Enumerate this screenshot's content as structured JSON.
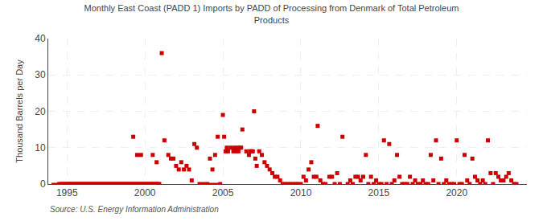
{
  "chart_data": {
    "type": "scatter",
    "title": "Monthly East Coast (PADD 1) Imports by PADD of Processing from Denmark of Total Petroleum\nProducts",
    "ylabel": "Thousand Barrels per Day",
    "annotations": [
      "Source: U.S. Energy Information Administration"
    ],
    "xlim": [
      1993.8,
      2024.5
    ],
    "xticks": [
      1995,
      2000,
      2005,
      2010,
      2015,
      2020
    ],
    "ylim": [
      0,
      40
    ],
    "yticks": [
      0,
      10,
      20,
      30,
      40
    ],
    "grid": true,
    "series": [
      {
        "type": "scatter",
        "marker": "square",
        "color": "#cc0000",
        "x": [
          1994.5,
          1994.6,
          1994.7,
          1994.8,
          1994.9,
          1995.0,
          1995.08,
          1995.17,
          1995.25,
          1995.33,
          1995.42,
          1995.5,
          1995.58,
          1995.67,
          1995.75,
          1995.83,
          1995.92,
          1996.0,
          1996.08,
          1996.17,
          1996.25,
          1996.33,
          1996.42,
          1996.5,
          1996.58,
          1996.67,
          1996.75,
          1996.83,
          1996.92,
          1997.0,
          1997.08,
          1997.17,
          1997.25,
          1997.33,
          1997.42,
          1997.5,
          1997.58,
          1997.67,
          1997.75,
          1997.83,
          1997.92,
          1998.0,
          1998.08,
          1998.17,
          1998.25,
          1998.33,
          1998.42,
          1998.5,
          1998.58,
          1998.67,
          1998.75,
          1998.83,
          1998.92,
          1999.0,
          1999.08,
          1999.17,
          1999.25,
          1999.33,
          1999.42,
          1999.5,
          1999.58,
          1999.67,
          1999.75,
          1999.83,
          1999.92,
          1999.25,
          1999.5,
          1999.75,
          2000.0,
          2000.08,
          2000.17,
          2000.25,
          2000.33,
          2000.42,
          2000.5,
          2000.58,
          2000.67,
          2000.75,
          2000.83,
          2000.92,
          2000.5,
          2000.75,
          2001.08,
          2001.25,
          2001.5,
          2001.67,
          2001.83,
          2002.0,
          2002.17,
          2002.33,
          2002.5,
          2002.67,
          2002.83,
          2003.0,
          2003.17,
          2003.33,
          2003.5,
          2003.75,
          2004.0,
          2004.17,
          2004.33,
          2004.5,
          2004.67,
          2004.83,
          2005.0,
          2005.08,
          2005.17,
          2005.25,
          2005.33,
          2005.5,
          2005.67,
          2005.75,
          2005.83,
          2005.92,
          2006.0,
          2006.08,
          2006.17,
          2006.25,
          2006.5,
          2006.67,
          2006.75,
          2006.83,
          2006.92,
          2007.0,
          2007.08,
          2007.17,
          2007.33,
          2007.5,
          2007.67,
          2007.83,
          2008.0,
          2008.17,
          2008.33,
          2008.5,
          2008.67,
          2008.83,
          2009.0,
          2009.17,
          2009.33,
          2009.5,
          2009.67,
          2009.83,
          2010.0,
          2010.17,
          2010.33,
          2010.5,
          2010.67,
          2010.83,
          2011.0,
          2011.08,
          2011.25,
          2011.42,
          2011.58,
          2011.83,
          2012.0,
          2012.17,
          2012.33,
          2012.5,
          2012.67,
          2013.0,
          2013.17,
          2013.33,
          2013.5,
          2013.67,
          2013.83,
          2014.0,
          2014.17,
          2014.33,
          2014.5,
          2014.67,
          2014.83,
          2015.0,
          2015.17,
          2015.33,
          2015.5,
          2015.67,
          2015.83,
          2016.0,
          2016.17,
          2016.33,
          2016.5,
          2016.67,
          2016.83,
          2017.0,
          2017.17,
          2017.33,
          2017.5,
          2017.67,
          2017.83,
          2018.0,
          2018.17,
          2018.33,
          2018.5,
          2018.67,
          2018.83,
          2019.0,
          2019.17,
          2019.33,
          2019.5,
          2019.67,
          2019.83,
          2020.0,
          2020.17,
          2020.33,
          2020.5,
          2020.67,
          2020.83,
          2021.0,
          2021.17,
          2021.33,
          2021.5,
          2021.67,
          2021.83,
          2022.0,
          2022.17,
          2022.33,
          2022.5,
          2022.67,
          2022.83,
          2023.0,
          2023.17,
          2023.33,
          2023.5,
          2023.67,
          2023.83
        ],
        "values": [
          0,
          0,
          0,
          0,
          0,
          0,
          0,
          0,
          0,
          0,
          0,
          0,
          0,
          0,
          0,
          0,
          0,
          0,
          0,
          0,
          0,
          0,
          0,
          0,
          0,
          0,
          0,
          0,
          0,
          0,
          0,
          0,
          0,
          0,
          0,
          0,
          0,
          0,
          0,
          0,
          0,
          0,
          0,
          0,
          0,
          0,
          0,
          0,
          0,
          0,
          0,
          0,
          0,
          0,
          0,
          0,
          0,
          0,
          0,
          0,
          0,
          0,
          0,
          0,
          0,
          13,
          8,
          8,
          0,
          0,
          0,
          0,
          0,
          0,
          0,
          0,
          0,
          0,
          0,
          0,
          8,
          6,
          36,
          12,
          8,
          7,
          7,
          5,
          4,
          6,
          4,
          5,
          4,
          1,
          11,
          10,
          0,
          0,
          0,
          7,
          4,
          8,
          13,
          0,
          19,
          13,
          9,
          10,
          9,
          10,
          9,
          10,
          9,
          10,
          9,
          10,
          10,
          15,
          9,
          8,
          9,
          9,
          9,
          20,
          7,
          5,
          9,
          8,
          6,
          5,
          4,
          3,
          2,
          2,
          1,
          0,
          0,
          0,
          0,
          0,
          0,
          0,
          0,
          2,
          1,
          4,
          6,
          2,
          2,
          16,
          1,
          0,
          0,
          2,
          2,
          0,
          3,
          0,
          13,
          0,
          1,
          0,
          2,
          2,
          1,
          2,
          8,
          0,
          2,
          0,
          1,
          0,
          0,
          12,
          0,
          11,
          0,
          1,
          8,
          2,
          0,
          0,
          0,
          2,
          0,
          1,
          0,
          0,
          1,
          0,
          0,
          8,
          1,
          12,
          0,
          7,
          0,
          1,
          0,
          0,
          0,
          12,
          0,
          0,
          8,
          1,
          0,
          7,
          2,
          1,
          0,
          1,
          0,
          12,
          3,
          0,
          3,
          2,
          1,
          1,
          2,
          3,
          1,
          0,
          0
        ]
      },
      {
        "type": "line",
        "line_style": "solid",
        "color": "#cc0000",
        "x": [
          1994.0,
          1999.58
        ],
        "values": [
          0,
          0
        ]
      },
      {
        "type": "line",
        "line_style": "solid",
        "color": "#cc0000",
        "x": [
          2003.5,
          2004.92
        ],
        "values": [
          0,
          0
        ]
      }
    ]
  }
}
